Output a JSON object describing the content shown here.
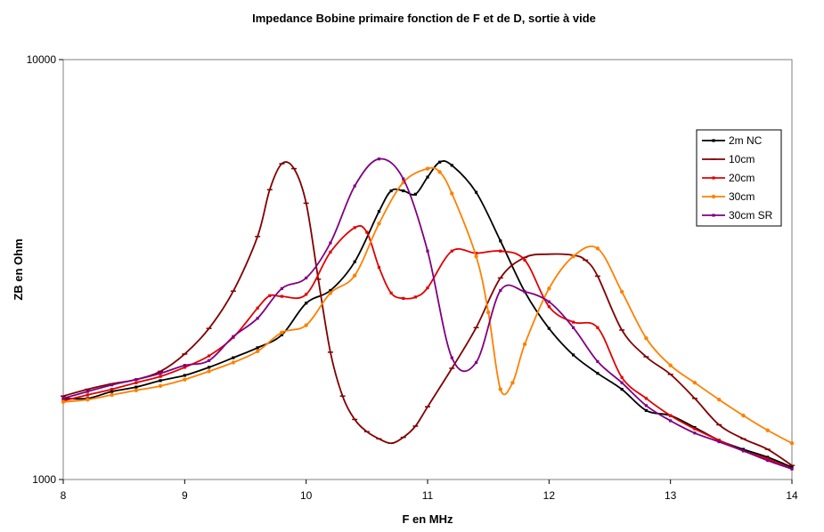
{
  "chart_data": {
    "type": "line",
    "title": "Impedance Bobine primaire fonction de F et de D, sortie à vide",
    "xlabel": "F en MHz",
    "ylabel": "ZB en Ohm",
    "xlim": [
      8,
      14
    ],
    "ylim": [
      1000,
      10000
    ],
    "yscale": "log",
    "x_ticks": [
      "8",
      "9",
      "10",
      "11",
      "12",
      "13",
      "14"
    ],
    "y_ticks": [
      "1000",
      "10000"
    ],
    "grid": false,
    "legend_position": "right",
    "series": [
      {
        "name": "2m NC",
        "color": "#000000",
        "marker": "square",
        "points": [
          [
            8.0,
            1560
          ],
          [
            8.2,
            1560
          ],
          [
            8.4,
            1620
          ],
          [
            8.6,
            1660
          ],
          [
            8.8,
            1720
          ],
          [
            9.0,
            1770
          ],
          [
            9.2,
            1850
          ],
          [
            9.4,
            1950
          ],
          [
            9.6,
            2060
          ],
          [
            9.8,
            2210
          ],
          [
            10.0,
            2630
          ],
          [
            10.2,
            2820
          ],
          [
            10.4,
            3300
          ],
          [
            10.6,
            4350
          ],
          [
            10.7,
            4870
          ],
          [
            10.8,
            4870
          ],
          [
            10.9,
            4780
          ],
          [
            11.0,
            5250
          ],
          [
            11.1,
            5700
          ],
          [
            11.2,
            5600
          ],
          [
            11.4,
            4830
          ],
          [
            11.6,
            3700
          ],
          [
            11.8,
            2800
          ],
          [
            12.0,
            2290
          ],
          [
            12.2,
            1980
          ],
          [
            12.4,
            1790
          ],
          [
            12.6,
            1640
          ],
          [
            12.8,
            1460
          ],
          [
            13.0,
            1420
          ],
          [
            13.2,
            1330
          ],
          [
            13.4,
            1240
          ],
          [
            13.6,
            1180
          ],
          [
            13.8,
            1130
          ],
          [
            14.0,
            1070
          ]
        ]
      },
      {
        "name": "10cm",
        "color": "#800000",
        "marker": "dash",
        "points": [
          [
            8.0,
            1580
          ],
          [
            8.2,
            1640
          ],
          [
            8.4,
            1690
          ],
          [
            8.6,
            1730
          ],
          [
            8.8,
            1810
          ],
          [
            9.0,
            1990
          ],
          [
            9.2,
            2290
          ],
          [
            9.4,
            2810
          ],
          [
            9.6,
            3790
          ],
          [
            9.7,
            4900
          ],
          [
            9.8,
            5650
          ],
          [
            9.9,
            5500
          ],
          [
            10.0,
            4550
          ],
          [
            10.1,
            3000
          ],
          [
            10.2,
            2010
          ],
          [
            10.3,
            1580
          ],
          [
            10.4,
            1390
          ],
          [
            10.5,
            1300
          ],
          [
            10.6,
            1250
          ],
          [
            10.7,
            1220
          ],
          [
            10.8,
            1260
          ],
          [
            10.9,
            1340
          ],
          [
            11.0,
            1490
          ],
          [
            11.2,
            1840
          ],
          [
            11.4,
            2300
          ],
          [
            11.6,
            3020
          ],
          [
            11.8,
            3380
          ],
          [
            12.0,
            3440
          ],
          [
            12.2,
            3420
          ],
          [
            12.3,
            3330
          ],
          [
            12.4,
            3050
          ],
          [
            12.6,
            2270
          ],
          [
            12.8,
            1960
          ],
          [
            13.0,
            1780
          ],
          [
            13.2,
            1560
          ],
          [
            13.4,
            1350
          ],
          [
            13.6,
            1250
          ],
          [
            13.8,
            1180
          ],
          [
            14.0,
            1080
          ]
        ]
      },
      {
        "name": "20cm",
        "color": "#e00000",
        "marker": "square",
        "points": [
          [
            8.0,
            1540
          ],
          [
            8.2,
            1590
          ],
          [
            8.4,
            1640
          ],
          [
            8.6,
            1700
          ],
          [
            8.8,
            1760
          ],
          [
            9.0,
            1850
          ],
          [
            9.2,
            1970
          ],
          [
            9.4,
            2180
          ],
          [
            9.6,
            2560
          ],
          [
            9.7,
            2740
          ],
          [
            9.8,
            2730
          ],
          [
            10.0,
            2760
          ],
          [
            10.2,
            3480
          ],
          [
            10.4,
            3980
          ],
          [
            10.5,
            3880
          ],
          [
            10.6,
            3200
          ],
          [
            10.7,
            2780
          ],
          [
            10.8,
            2700
          ],
          [
            10.9,
            2720
          ],
          [
            11.0,
            2860
          ],
          [
            11.2,
            3500
          ],
          [
            11.4,
            3460
          ],
          [
            11.6,
            3500
          ],
          [
            11.8,
            3330
          ],
          [
            12.0,
            2580
          ],
          [
            12.2,
            2370
          ],
          [
            12.4,
            2300
          ],
          [
            12.6,
            1750
          ],
          [
            12.8,
            1560
          ],
          [
            13.0,
            1420
          ],
          [
            13.2,
            1320
          ],
          [
            13.4,
            1240
          ],
          [
            13.6,
            1170
          ],
          [
            13.8,
            1120
          ],
          [
            14.0,
            1060
          ]
        ]
      },
      {
        "name": "30cm",
        "color": "#ff8000",
        "marker": "circle",
        "points": [
          [
            8.0,
            1530
          ],
          [
            8.2,
            1550
          ],
          [
            8.4,
            1590
          ],
          [
            8.6,
            1630
          ],
          [
            8.8,
            1670
          ],
          [
            9.0,
            1730
          ],
          [
            9.2,
            1810
          ],
          [
            9.4,
            1900
          ],
          [
            9.6,
            2020
          ],
          [
            9.8,
            2240
          ],
          [
            10.0,
            2330
          ],
          [
            10.2,
            2780
          ],
          [
            10.4,
            3060
          ],
          [
            10.6,
            4070
          ],
          [
            10.8,
            5100
          ],
          [
            11.0,
            5500
          ],
          [
            11.1,
            5400
          ],
          [
            11.2,
            4800
          ],
          [
            11.4,
            3400
          ],
          [
            11.5,
            2500
          ],
          [
            11.6,
            1640
          ],
          [
            11.7,
            1700
          ],
          [
            11.8,
            2100
          ],
          [
            12.0,
            2850
          ],
          [
            12.2,
            3400
          ],
          [
            12.4,
            3550
          ],
          [
            12.6,
            2800
          ],
          [
            12.8,
            2170
          ],
          [
            13.0,
            1870
          ],
          [
            13.2,
            1700
          ],
          [
            13.4,
            1550
          ],
          [
            13.6,
            1420
          ],
          [
            13.8,
            1310
          ],
          [
            14.0,
            1220
          ]
        ]
      },
      {
        "name": "30cm SR",
        "color": "#800080",
        "marker": "square",
        "points": [
          [
            8.0,
            1560
          ],
          [
            8.2,
            1620
          ],
          [
            8.4,
            1680
          ],
          [
            8.6,
            1730
          ],
          [
            8.8,
            1790
          ],
          [
            9.0,
            1870
          ],
          [
            9.2,
            1920
          ],
          [
            9.4,
            2190
          ],
          [
            9.6,
            2420
          ],
          [
            9.8,
            2850
          ],
          [
            10.0,
            3020
          ],
          [
            10.2,
            3660
          ],
          [
            10.4,
            5000
          ],
          [
            10.6,
            5800
          ],
          [
            10.8,
            5200
          ],
          [
            11.0,
            3500
          ],
          [
            11.2,
            1950
          ],
          [
            11.4,
            1900
          ],
          [
            11.6,
            2820
          ],
          [
            11.8,
            2800
          ],
          [
            12.0,
            2650
          ],
          [
            12.2,
            2300
          ],
          [
            12.4,
            1910
          ],
          [
            12.6,
            1700
          ],
          [
            12.8,
            1500
          ],
          [
            13.0,
            1380
          ],
          [
            13.2,
            1290
          ],
          [
            13.4,
            1230
          ],
          [
            13.6,
            1170
          ],
          [
            13.8,
            1110
          ],
          [
            14.0,
            1060
          ]
        ]
      }
    ]
  }
}
